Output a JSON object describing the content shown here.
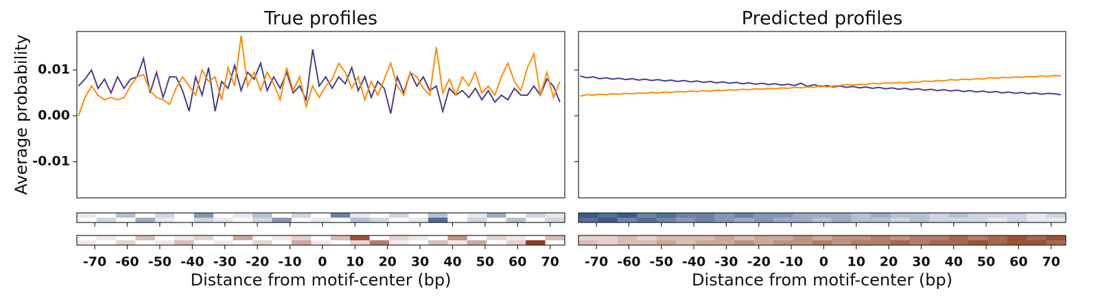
{
  "chart_data": [
    {
      "type": "line",
      "title": "True profiles",
      "x_label": "Distance from motif-center (bp)",
      "y_label": "Average probability",
      "x": [
        -75,
        -73,
        -71,
        -69,
        -67,
        -65,
        -63,
        -61,
        -59,
        -57,
        -55,
        -53,
        -51,
        -49,
        -47,
        -45,
        -43,
        -41,
        -39,
        -37,
        -35,
        -33,
        -31,
        -29,
        -27,
        -25,
        -23,
        -21,
        -19,
        -17,
        -15,
        -13,
        -11,
        -9,
        -7,
        -5,
        -3,
        -1,
        1,
        3,
        5,
        7,
        9,
        11,
        13,
        15,
        17,
        19,
        21,
        23,
        25,
        27,
        29,
        31,
        33,
        35,
        37,
        39,
        41,
        43,
        45,
        47,
        49,
        51,
        53,
        55,
        57,
        59,
        61,
        63,
        65,
        67,
        69,
        71,
        73
      ],
      "series": [
        {
          "color": "#483d8b",
          "values": [
            0.0065,
            0.008,
            0.01,
            0.006,
            0.008,
            0.005,
            0.0085,
            0.006,
            0.008,
            0.0085,
            0.0125,
            0.005,
            0.0095,
            0.004,
            0.0085,
            0.0085,
            0.0055,
            0.001,
            0.0085,
            0.0045,
            0.0105,
            0.001,
            0.0075,
            0.006,
            0.011,
            0.0055,
            0.0095,
            0.008,
            0.0115,
            0.0055,
            0.0085,
            0.006,
            0.0095,
            0.005,
            0.0065,
            0.0035,
            0.0145,
            0.0065,
            0.0085,
            0.006,
            0.0085,
            0.007,
            0.0105,
            0.0055,
            0.0085,
            0.004,
            0.0075,
            0.006,
            0.0005,
            0.0085,
            0.005,
            0.0095,
            0.0065,
            0.0085,
            0.0055,
            0.0065,
            0.001,
            0.006,
            0.0045,
            0.0055,
            0.004,
            0.006,
            0.0035,
            0.0055,
            0.003,
            0.0045,
            0.0035,
            0.006,
            0.0045,
            0.0045,
            0.0065,
            0.0045,
            0.008,
            0.0065,
            0.003
          ]
        },
        {
          "color": "#ff8c00",
          "values": [
            0.0,
            0.004,
            0.0065,
            0.0045,
            0.0035,
            0.004,
            0.0035,
            0.004,
            0.0065,
            0.0085,
            0.009,
            0.0055,
            0.004,
            0.0035,
            0.0025,
            0.006,
            0.0085,
            0.0065,
            0.0045,
            0.01,
            0.0075,
            0.0085,
            0.0035,
            0.0105,
            0.0065,
            0.0175,
            0.0065,
            0.0095,
            0.0055,
            0.0095,
            0.007,
            0.0035,
            0.0105,
            0.0055,
            0.0085,
            0.002,
            0.0065,
            0.004,
            0.0065,
            0.008,
            0.0115,
            0.0095,
            0.006,
            0.0085,
            0.0035,
            0.0075,
            0.0045,
            0.008,
            0.0115,
            0.0065,
            0.0045,
            0.0095,
            0.0085,
            0.006,
            0.0045,
            0.015,
            0.005,
            0.008,
            0.0045,
            0.0085,
            0.0065,
            0.0095,
            0.005,
            0.0065,
            0.0045,
            0.0085,
            0.0115,
            0.0075,
            0.0055,
            0.0105,
            0.0135,
            0.0045,
            0.0095,
            0.004,
            0.0075
          ]
        }
      ],
      "xlim": [
        -75.5,
        74.5
      ],
      "ylim": [
        -0.0179,
        0.0184
      ],
      "xticks": [
        -70,
        -60,
        -50,
        -40,
        -30,
        -20,
        -10,
        0,
        10,
        20,
        30,
        40,
        50,
        60,
        70
      ],
      "yticks": [
        {
          "value": -0.01,
          "label": "-0.01"
        },
        {
          "value": 0,
          "label": "0.00"
        },
        {
          "value": 0.01,
          "label": "0.01"
        }
      ],
      "heatmaps": [
        {
          "color": "#08306b",
          "values": [
            [
              0.1,
              0,
              0.3,
              0,
              0.2,
              0,
              0.5,
              0,
              0.1,
              0.3,
              0,
              0.2,
              0,
              0.6,
              0.1,
              0,
              0.2,
              0,
              0.3,
              0,
              0.1,
              0.4,
              0,
              0.2,
              0.1
            ],
            [
              0,
              0.2,
              0,
              0.4,
              0.1,
              0,
              0.2,
              0.1,
              0,
              0.2,
              0.5,
              0,
              0.1,
              0,
              0.3,
              0.2,
              0,
              0.1,
              0.7,
              0,
              0.2,
              0,
              0.3,
              0,
              0.2
            ]
          ]
        },
        {
          "color": "#7f2704",
          "values": [
            [
              0,
              0.1,
              0,
              0.3,
              0,
              0.1,
              0.2,
              0,
              0.4,
              0,
              0.1,
              0.2,
              0,
              0.3,
              0.8,
              0,
              0.2,
              0.1,
              0,
              0.5,
              0,
              0.2,
              0.1,
              0,
              0.3
            ],
            [
              0.1,
              0,
              0.2,
              0,
              0.1,
              0.3,
              0,
              0.1,
              0,
              0.2,
              0,
              0.4,
              0.1,
              0,
              0.2,
              0.6,
              0.1,
              0,
              0.3,
              0.1,
              0.4,
              0,
              0.2,
              0.9,
              0
            ]
          ]
        }
      ]
    },
    {
      "type": "line",
      "title": "Predicted profiles",
      "x_label": "Distance from motif-center (bp)",
      "x": [
        -75,
        -73,
        -71,
        -69,
        -67,
        -65,
        -63,
        -61,
        -59,
        -57,
        -55,
        -53,
        -51,
        -49,
        -47,
        -45,
        -43,
        -41,
        -39,
        -37,
        -35,
        -33,
        -31,
        -29,
        -27,
        -25,
        -23,
        -21,
        -19,
        -17,
        -15,
        -13,
        -11,
        -9,
        -7,
        -5,
        -3,
        -1,
        1,
        3,
        5,
        7,
        9,
        11,
        13,
        15,
        17,
        19,
        21,
        23,
        25,
        27,
        29,
        31,
        33,
        35,
        37,
        39,
        41,
        43,
        45,
        47,
        49,
        51,
        53,
        55,
        57,
        59,
        61,
        63,
        65,
        67,
        69,
        71,
        73
      ],
      "series": [
        {
          "color": "#483d8b",
          "values": [
            0.0087,
            0.0083,
            0.0085,
            0.0081,
            0.0083,
            0.008,
            0.0082,
            0.0079,
            0.0081,
            0.0078,
            0.008,
            0.0077,
            0.0079,
            0.0076,
            0.0078,
            0.0075,
            0.0077,
            0.0074,
            0.0076,
            0.0073,
            0.0075,
            0.0072,
            0.0074,
            0.0071,
            0.0073,
            0.007,
            0.0072,
            0.0069,
            0.0071,
            0.0068,
            0.007,
            0.0067,
            0.0069,
            0.0066,
            0.0071,
            0.0064,
            0.0068,
            0.0064,
            0.0066,
            0.0063,
            0.0065,
            0.0062,
            0.0064,
            0.0061,
            0.0063,
            0.006,
            0.0062,
            0.0059,
            0.0061,
            0.0058,
            0.006,
            0.0057,
            0.0059,
            0.0056,
            0.0058,
            0.0055,
            0.0057,
            0.0054,
            0.0056,
            0.0053,
            0.0055,
            0.0052,
            0.0054,
            0.0051,
            0.0053,
            0.005,
            0.0052,
            0.0049,
            0.0051,
            0.0048,
            0.005,
            0.0047,
            0.0049,
            0.0048,
            0.0046
          ]
        },
        {
          "color": "#ff8c00",
          "values": [
            0.0043,
            0.0046,
            0.0045,
            0.0047,
            0.0046,
            0.0048,
            0.0047,
            0.0049,
            0.0048,
            0.005,
            0.0049,
            0.0051,
            0.005,
            0.0052,
            0.0051,
            0.0053,
            0.0052,
            0.0054,
            0.0053,
            0.0055,
            0.0054,
            0.0056,
            0.0055,
            0.0057,
            0.0056,
            0.0058,
            0.0057,
            0.0059,
            0.0058,
            0.006,
            0.0059,
            0.0061,
            0.006,
            0.0062,
            0.0061,
            0.0063,
            0.0062,
            0.0066,
            0.0063,
            0.0065,
            0.0066,
            0.0068,
            0.0067,
            0.0069,
            0.0068,
            0.0071,
            0.007,
            0.0072,
            0.0071,
            0.0073,
            0.0072,
            0.0074,
            0.0073,
            0.0076,
            0.0075,
            0.0077,
            0.0076,
            0.0079,
            0.0078,
            0.008,
            0.0079,
            0.0081,
            0.008,
            0.0083,
            0.0082,
            0.0084,
            0.0083,
            0.0085,
            0.0084,
            0.0086,
            0.0085,
            0.0087,
            0.0086,
            0.0088,
            0.0087
          ]
        }
      ],
      "xlim": [
        -75.5,
        74.5
      ],
      "ylim": [
        -0.0179,
        0.0184
      ],
      "xticks": [
        -70,
        -60,
        -50,
        -40,
        -30,
        -20,
        -10,
        0,
        10,
        20,
        30,
        40,
        50,
        60,
        70
      ],
      "yticks": [
        -0.01,
        0,
        0.01
      ],
      "heatmaps": [
        {
          "color": "#08306b",
          "values": [
            [
              0.8,
              0.7,
              0.8,
              0.6,
              0.7,
              0.6,
              0.6,
              0.5,
              0.6,
              0.5,
              0.5,
              0.4,
              0.4,
              0.4,
              0.3,
              0.4,
              0.3,
              0.3,
              0.2,
              0.3,
              0.2,
              0.2,
              0.2,
              0.1,
              0.2
            ],
            [
              0.7,
              0.8,
              0.6,
              0.7,
              0.6,
              0.5,
              0.6,
              0.5,
              0.4,
              0.5,
              0.4,
              0.4,
              0.3,
              0.4,
              0.3,
              0.3,
              0.2,
              0.3,
              0.2,
              0.2,
              0.2,
              0.1,
              0.2,
              0.1,
              0.1
            ]
          ]
        },
        {
          "color": "#7f2704",
          "values": [
            [
              0.2,
              0.2,
              0.3,
              0.2,
              0.3,
              0.3,
              0.3,
              0.4,
              0.3,
              0.4,
              0.4,
              0.5,
              0.4,
              0.5,
              0.5,
              0.6,
              0.5,
              0.6,
              0.6,
              0.7,
              0.6,
              0.7,
              0.8,
              0.7,
              0.8
            ],
            [
              0.3,
              0.2,
              0.3,
              0.3,
              0.4,
              0.3,
              0.4,
              0.4,
              0.5,
              0.4,
              0.5,
              0.5,
              0.6,
              0.5,
              0.6,
              0.6,
              0.7,
              0.6,
              0.7,
              0.7,
              0.8,
              0.7,
              0.8,
              0.8,
              0.7
            ]
          ]
        }
      ]
    }
  ]
}
